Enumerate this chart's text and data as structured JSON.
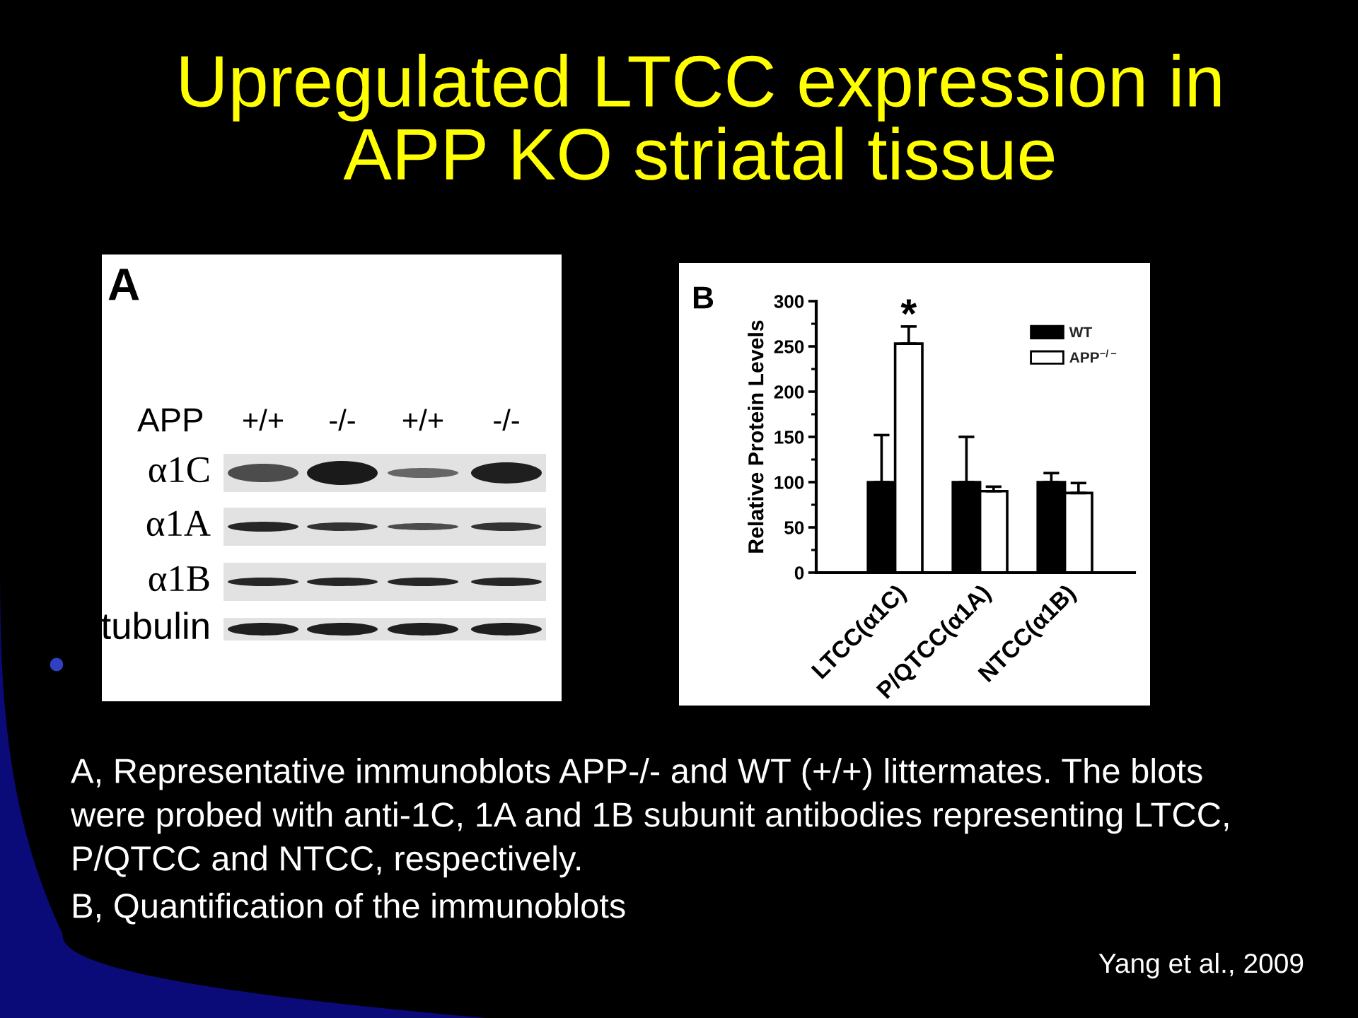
{
  "chart_data": [
    {
      "type": "other",
      "title": "Upregulated LTCC expression in APP KO striatal tissue",
      "annotations": [
        "A",
        "APP",
        "+/+",
        "-/-",
        "+/+",
        "-/-",
        "α1C",
        "α1A",
        "α1B",
        "tubulin"
      ]
    },
    {
      "type": "bar",
      "categories": [
        "LTCC(α1C)",
        "P/QTCC(α1A)",
        "NTCC(α1B)"
      ],
      "series": [
        {
          "name": "WT",
          "color": "#000000",
          "values": [
            100,
            100,
            100
          ],
          "errors": [
            [
              100,
              152
            ],
            [
              100,
              150
            ],
            [
              100,
              110
            ]
          ]
        },
        {
          "name": "APP$^{−/−}$",
          "color": "#ffffff",
          "values": [
            253,
            90,
            88
          ],
          "errors": [
            [
              253,
              272
            ],
            [
              90,
              95
            ],
            [
              88,
              99
            ]
          ]
        }
      ],
      "ylabel": "Relative Protein Levels",
      "ylim": [
        0,
        300
      ],
      "yticks": [
        0,
        {
          "value": 25,
          "label": null
        },
        50,
        {
          "value": 75,
          "label": null
        },
        100,
        {
          "value": 125,
          "label": null
        },
        150,
        {
          "value": 175,
          "label": null
        },
        200,
        {
          "value": 225,
          "label": null
        },
        250,
        {
          "value": 275,
          "label": null
        },
        300
      ],
      "legend": "top right",
      "annotations": [
        "B",
        {
          "text": "*",
          "x": "LTCC(α1C)",
          "y": 272
        },
        "A, Representative immunoblots APP-/- and WT (+/+) littermates. The blots were probed with anti-1C, 1A and 1B subunit antibodies representing LTCC, P/QTCC and NTCC, respectively.",
        "B, Quantification of the immunoblots",
        "Yang et al., 2009"
      ]
    }
  ]
}
